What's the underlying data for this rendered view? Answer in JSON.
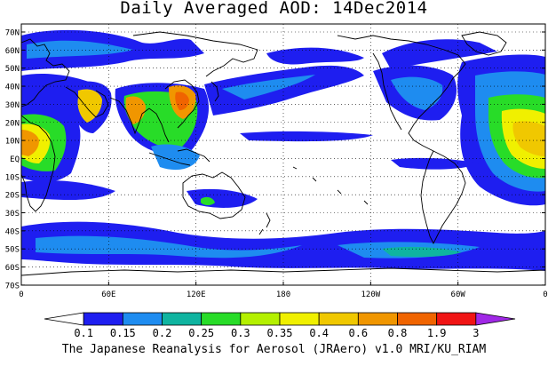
{
  "title": "Daily Averaged AOD: 14Dec2014",
  "footer": "The Japanese Reanalysis for Aerosol (JRAero) v1.0 MRI/KU_RIAM",
  "lat_labels": [
    "70N",
    "60N",
    "50N",
    "40N",
    "30N",
    "20N",
    "10N",
    "EQ",
    "10S",
    "20S",
    "30S",
    "40S",
    "50S",
    "60S",
    "70S"
  ],
  "lon_labels": [
    "0",
    "60E",
    "120E",
    "180",
    "120W",
    "60W",
    "0"
  ],
  "colorbar": {
    "labels": [
      "0.1",
      "0.15",
      "0.2",
      "0.25",
      "0.3",
      "0.35",
      "0.4",
      "0.6",
      "0.8",
      "1.9",
      "3"
    ],
    "colors": [
      "#ffffff",
      "#1e1ef0",
      "#1e8cf0",
      "#0fb4a0",
      "#28dc28",
      "#b4f000",
      "#f0f000",
      "#f0c800",
      "#f09600",
      "#f06400",
      "#f01414",
      "#a028e6"
    ]
  },
  "map": {
    "ocean_color": "#ffffff",
    "coastline_color": "#000000",
    "grid": "dotted"
  }
}
